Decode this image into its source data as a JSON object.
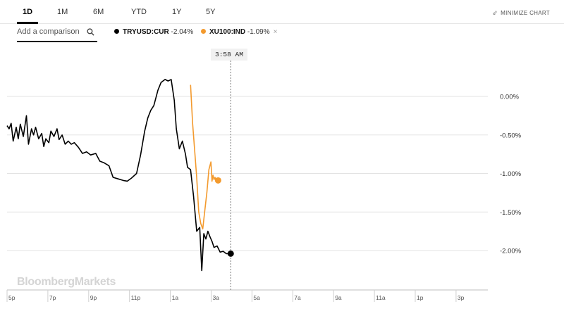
{
  "range_tabs": [
    {
      "label": "1D",
      "active": true
    },
    {
      "label": "1M",
      "active": false
    },
    {
      "label": "6M",
      "active": false
    },
    {
      "label": "YTD",
      "active": false
    },
    {
      "label": "1Y",
      "active": false
    },
    {
      "label": "5Y",
      "active": false
    }
  ],
  "minimize_label": "MINIMIZE CHART",
  "comparison": {
    "placeholder": "Add a comparison"
  },
  "legend": [
    {
      "symbol": "TRYUSD:CUR",
      "change": "-2.04%",
      "color": "#000000",
      "removable": false
    },
    {
      "symbol": "XU100:IND",
      "change": "-1.09%",
      "color": "#f39a2e",
      "removable": true
    }
  ],
  "crosshair_time": "3:58 AM",
  "watermark": "BloombergMarkets",
  "chart_data": {
    "type": "line",
    "title": "",
    "xlabel": "",
    "ylabel": "",
    "x_tick_labels": [
      "5p",
      "7p",
      "9p",
      "11p",
      "1a",
      "3a",
      "5a",
      "7a",
      "9a",
      "11a",
      "1p",
      "3p"
    ],
    "y_tick_labels": [
      "0.00%",
      "-0.50%",
      "-1.00%",
      "-1.50%",
      "-2.00%"
    ],
    "y_ticks": [
      0,
      -0.5,
      -1,
      -1.5,
      -2
    ],
    "ylim": [
      -2.5,
      0.25
    ],
    "xlim": [
      17,
      40
    ],
    "grid": true,
    "crosshair_x": 27.97,
    "series": [
      {
        "name": "TRYUSD:CUR",
        "color": "#000000",
        "x": [
          17.0,
          17.1,
          17.2,
          17.3,
          17.45,
          17.55,
          17.65,
          17.8,
          17.95,
          18.05,
          18.2,
          18.3,
          18.4,
          18.55,
          18.7,
          18.8,
          18.9,
          19.05,
          19.15,
          19.3,
          19.45,
          19.55,
          19.7,
          19.85,
          20.0,
          20.15,
          20.3,
          20.5,
          20.7,
          20.9,
          21.1,
          21.35,
          21.55,
          21.75,
          22.0,
          22.2,
          22.45,
          22.7,
          22.9,
          23.1,
          23.35,
          23.55,
          23.75,
          23.9,
          24.05,
          24.2,
          24.4,
          24.55,
          24.75,
          24.9,
          25.05,
          25.2,
          25.3,
          25.45,
          25.6,
          25.75,
          25.85,
          26.0,
          26.15,
          26.3,
          26.45,
          26.55,
          26.65,
          26.75,
          26.85,
          26.95,
          27.05,
          27.15,
          27.3,
          27.45,
          27.6,
          27.75,
          27.85,
          27.97
        ],
        "y": [
          -0.38,
          -0.42,
          -0.35,
          -0.58,
          -0.4,
          -0.55,
          -0.36,
          -0.52,
          -0.25,
          -0.62,
          -0.42,
          -0.5,
          -0.4,
          -0.55,
          -0.48,
          -0.65,
          -0.55,
          -0.6,
          -0.45,
          -0.52,
          -0.42,
          -0.56,
          -0.5,
          -0.62,
          -0.58,
          -0.62,
          -0.6,
          -0.66,
          -0.74,
          -0.72,
          -0.76,
          -0.74,
          -0.84,
          -0.86,
          -0.9,
          -1.05,
          -1.07,
          -1.09,
          -1.1,
          -1.06,
          -1.0,
          -0.76,
          -0.45,
          -0.28,
          -0.18,
          -0.12,
          0.08,
          0.18,
          0.22,
          0.2,
          0.22,
          -0.05,
          -0.42,
          -0.68,
          -0.58,
          -0.75,
          -0.92,
          -0.95,
          -1.3,
          -1.75,
          -1.7,
          -2.26,
          -1.78,
          -1.85,
          -1.75,
          -1.82,
          -1.88,
          -1.96,
          -1.94,
          -2.02,
          -2.01,
          -2.04,
          -2.04,
          -2.04
        ]
      },
      {
        "name": "XU100:IND",
        "color": "#f39a2e",
        "x": [
          26.0,
          26.1,
          26.2,
          26.3,
          26.4,
          26.5,
          26.6,
          26.7,
          26.8,
          26.9,
          27.0,
          27.05,
          27.1,
          27.15,
          27.2,
          27.25,
          27.3,
          27.35
        ],
        "y": [
          0.15,
          -0.35,
          -0.7,
          -1.05,
          -1.5,
          -1.65,
          -1.72,
          -1.48,
          -1.25,
          -0.95,
          -0.85,
          -1.1,
          -1.02,
          -1.08,
          -1.05,
          -1.09,
          -1.09,
          -1.09
        ]
      }
    ]
  }
}
